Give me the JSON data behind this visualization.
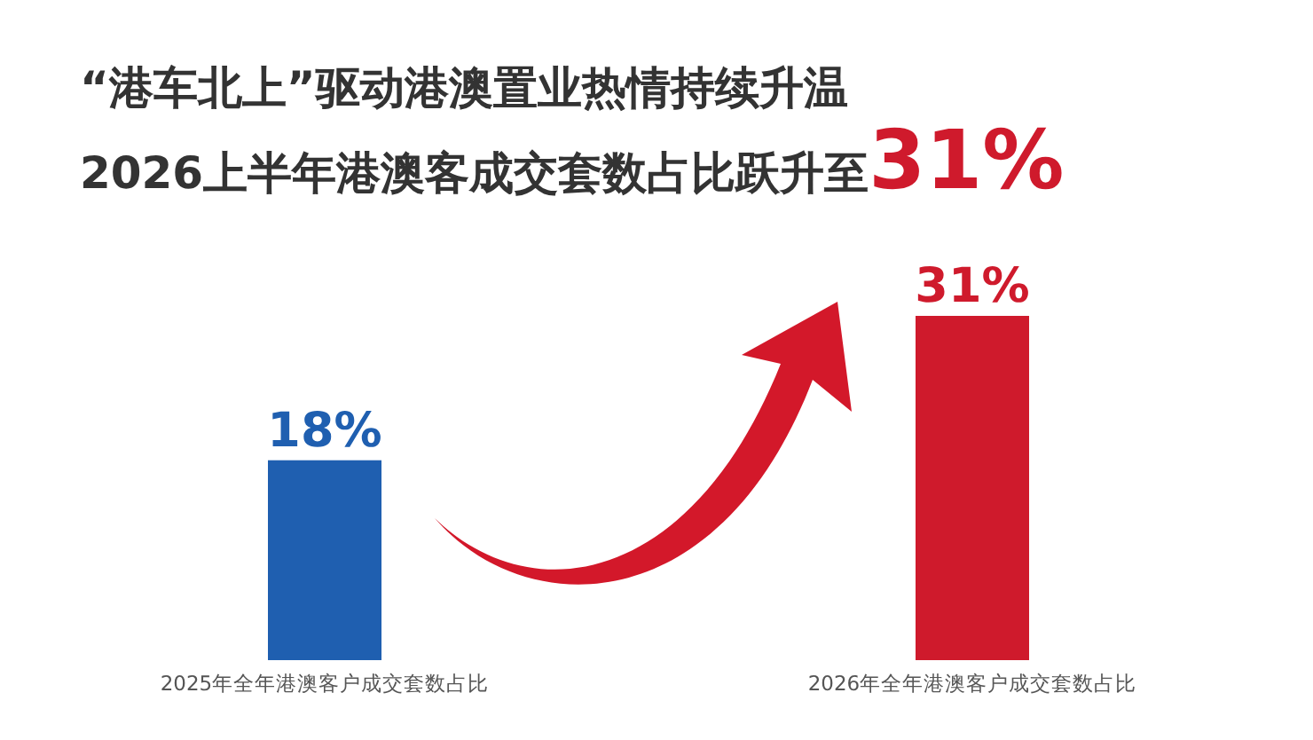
{
  "chart_data": {
    "type": "bar",
    "title": "“港车北上”驱动港澳置业热情持续升温",
    "subtitle": "2026上半年港澳客成交套数占比跃升至31%",
    "categories": [
      "2025年全年港澳客户成交套数占比",
      "2026年全年港澳客户成交套数占比"
    ],
    "values": [
      18,
      31
    ],
    "colors": [
      "#1f5fb0",
      "#cf1a2c"
    ],
    "value_labels": [
      "18%",
      "31%"
    ]
  }
}
